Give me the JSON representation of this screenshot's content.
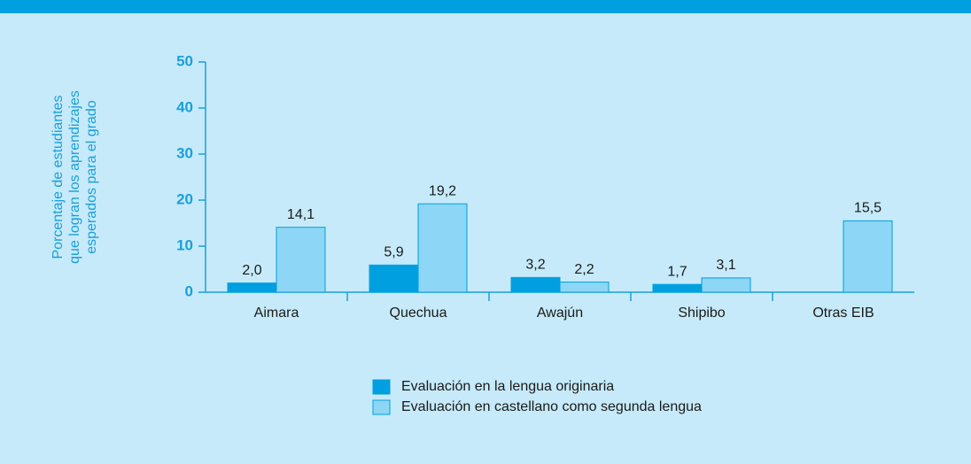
{
  "chart_data": {
    "type": "bar",
    "ylabel": [
      "Porcentaje de estudiantes",
      "que logran los aprendizajes",
      "esperados para el grado"
    ],
    "categories": [
      "Aimara",
      "Quechua",
      "Awajún",
      "Shipibo",
      "Otras EIB"
    ],
    "series": [
      {
        "name": "Evaluación en la lengua originaria",
        "color": "#00a0e0",
        "values": [
          2.0,
          5.9,
          3.2,
          1.7,
          null
        ],
        "value_labels": [
          "2,0",
          "5,9",
          "3,2",
          "1,7",
          null
        ]
      },
      {
        "name": "Evaluación en castellano como segunda lengua",
        "color": "#8dd6f5",
        "values": [
          14.1,
          19.2,
          2.2,
          3.1,
          15.5
        ],
        "value_labels": [
          "14,1",
          "19,2",
          "2,2",
          "3,1",
          "15,5"
        ]
      }
    ],
    "ylim": [
      0,
      50
    ],
    "yticks": [
      0,
      10,
      20,
      30,
      40,
      50
    ],
    "grid": false
  }
}
